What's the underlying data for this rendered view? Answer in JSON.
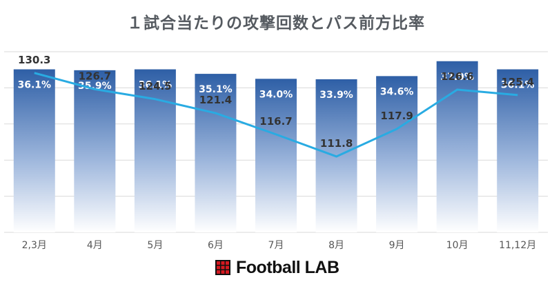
{
  "chart_data": {
    "type": "bar",
    "title": "１試合当たりの攻撃回数とパス前方比率",
    "categories": [
      "2,3月",
      "4月",
      "5月",
      "6月",
      "7月",
      "8月",
      "9月",
      "10月",
      "11,12月"
    ],
    "series": [
      {
        "kind": "line",
        "values": [
          130.3,
          126.7,
          124.5,
          121.4,
          116.7,
          111.8,
          117.9,
          126.6,
          125.4
        ],
        "labels": [
          "130.3",
          "126.7",
          "124.5",
          "121.4",
          "116.7",
          "111.8",
          "117.9",
          "126.6",
          "125.4"
        ],
        "color": "#29abe2"
      },
      {
        "kind": "bar",
        "values": [
          36.1,
          35.9,
          36.1,
          35.1,
          34.0,
          33.9,
          34.6,
          37.9,
          36.1
        ],
        "labels": [
          "36.1%",
          "35.9%",
          "36.1%",
          "35.1%",
          "34.0%",
          "33.9%",
          "34.6%",
          "37.9%",
          "36.1%"
        ],
        "color_top": "#2e5fa6",
        "color_bottom": "#ffffff"
      }
    ],
    "ylim_line": [
      95,
      135
    ],
    "ylim_bar": [
      0,
      40
    ],
    "grid": true,
    "legend": "none"
  },
  "brand": {
    "text": "Football LAB"
  },
  "colors": {
    "title": "#555a60",
    "grid": "#d9d9d9",
    "axis_text": "#555555"
  }
}
